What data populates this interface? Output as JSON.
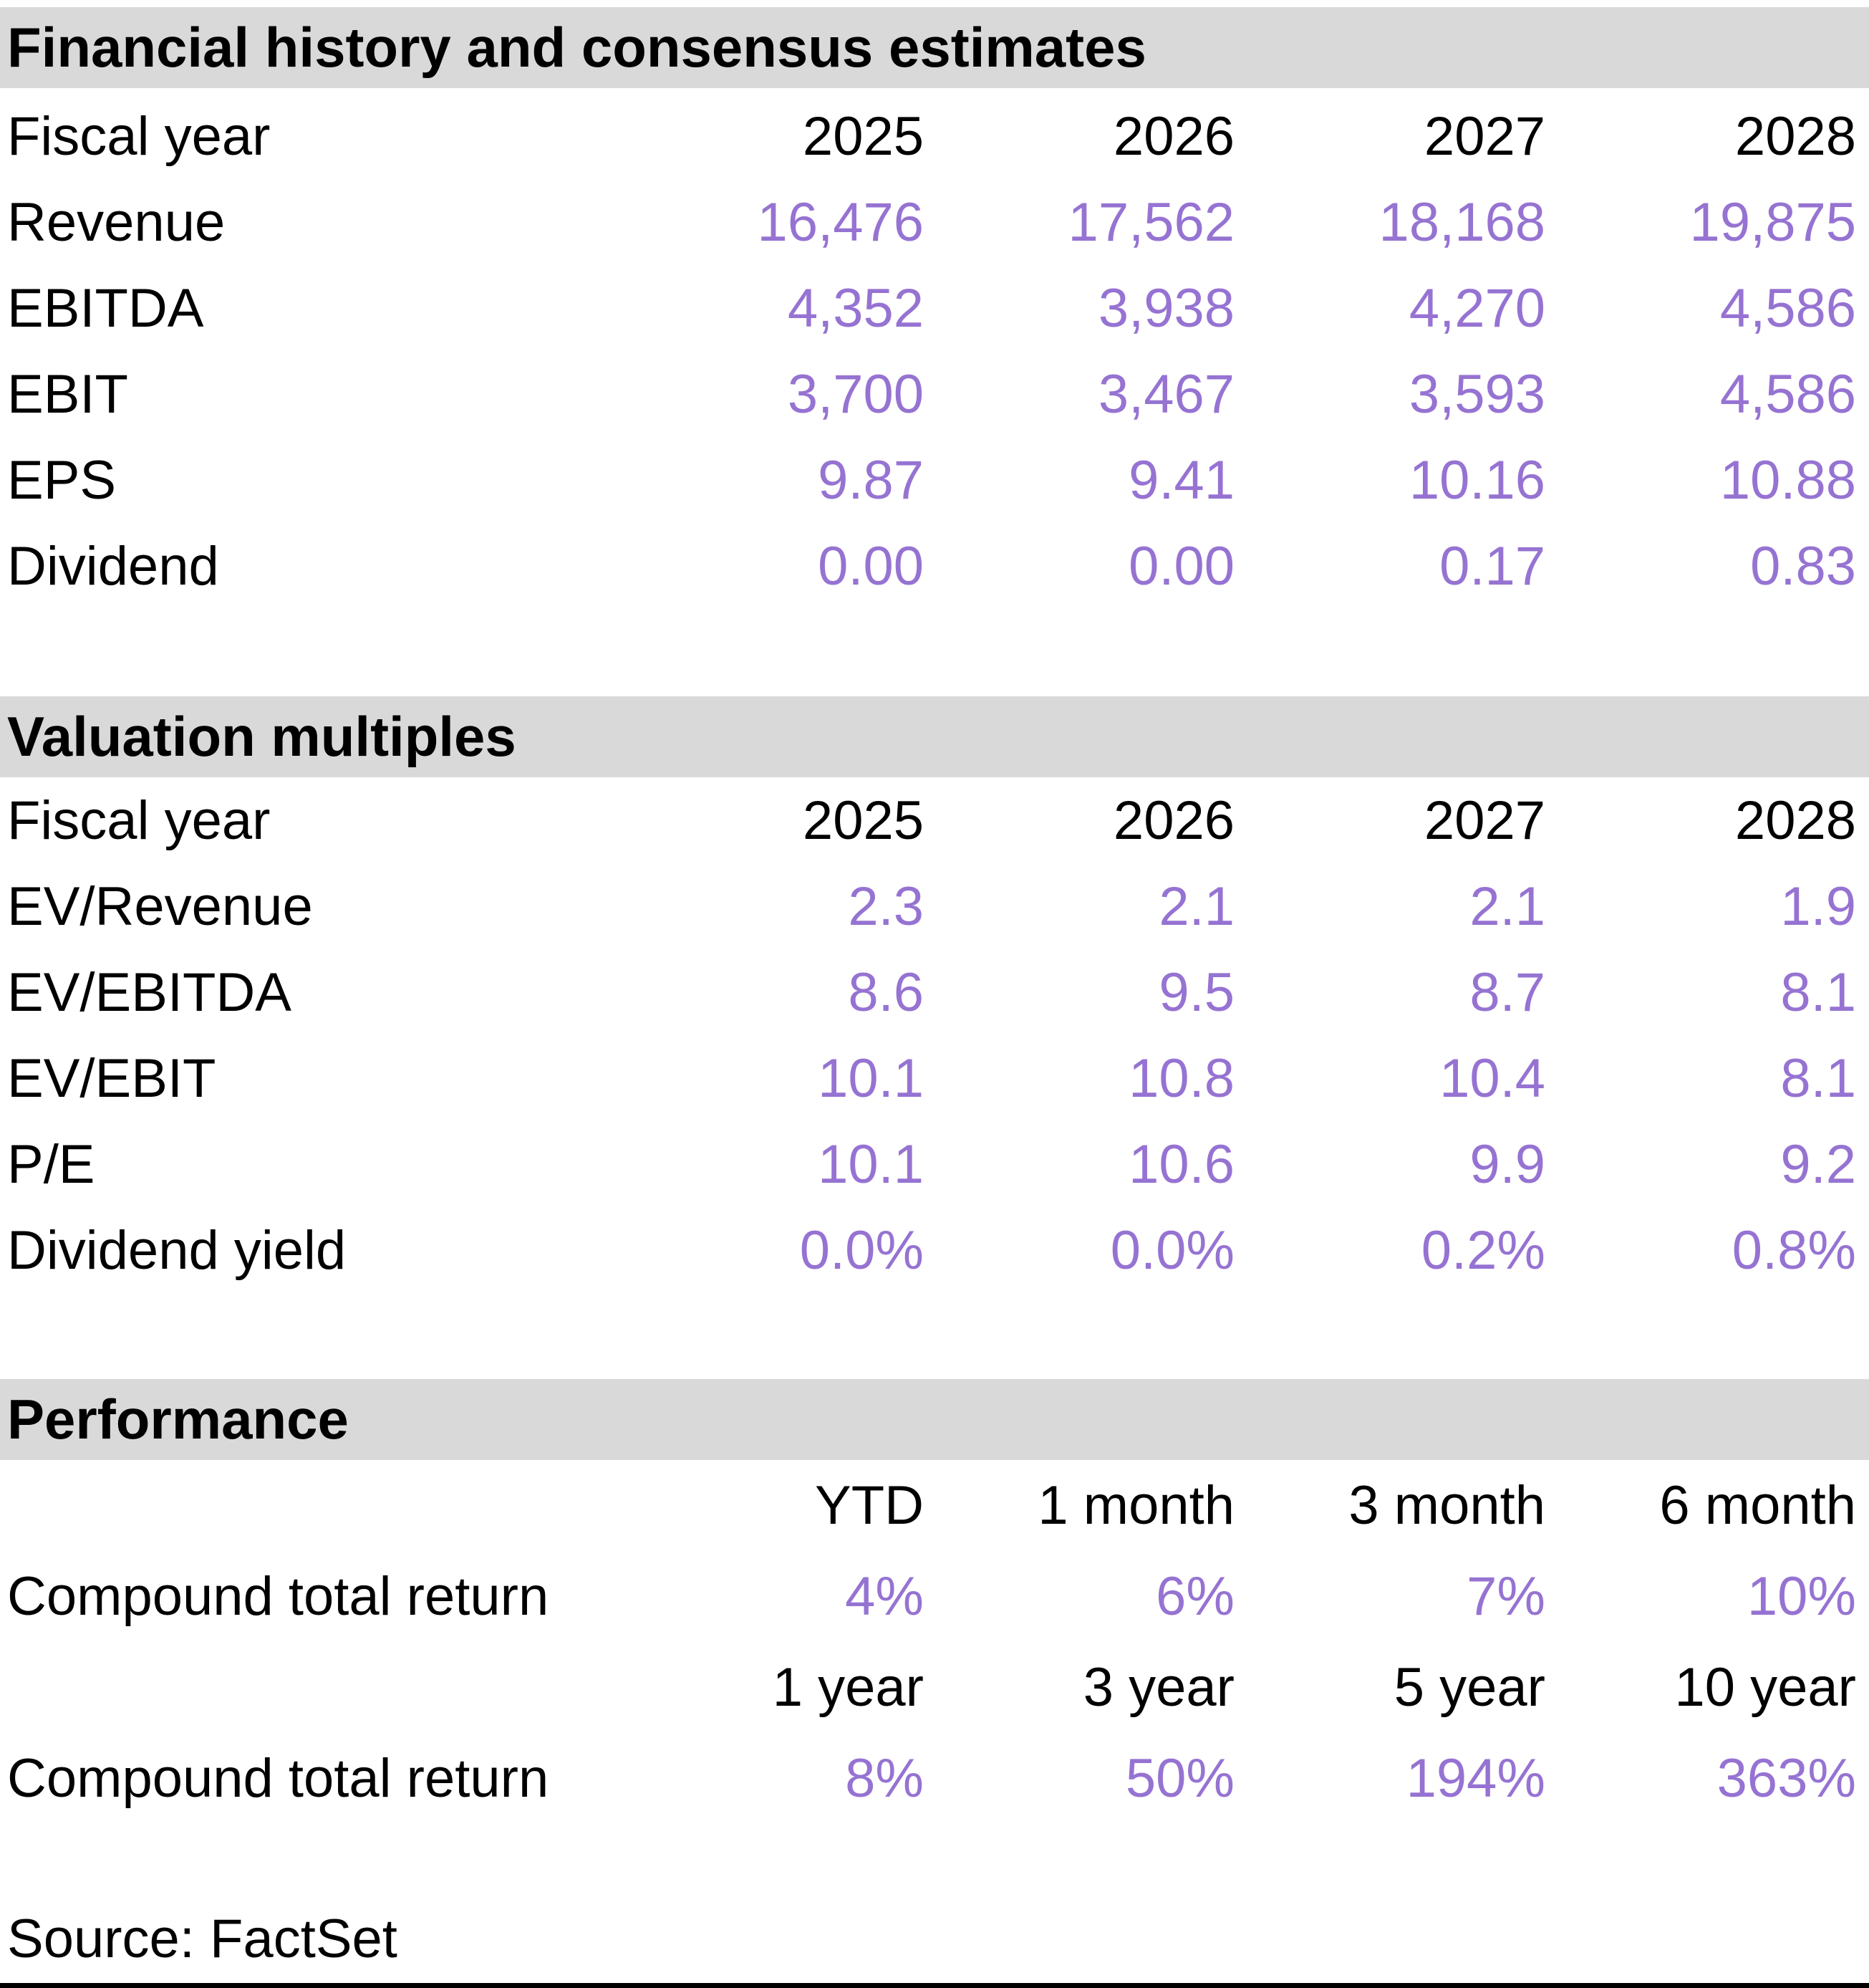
{
  "colors": {
    "accent_purple": "#9673D2",
    "section_header_bg": "#D9D9D9",
    "text": "#000000"
  },
  "sections": [
    {
      "title": "Financial history and consensus estimates",
      "header_row": {
        "label": "Fiscal year",
        "cols": [
          "2025",
          "2026",
          "2027",
          "2028"
        ]
      },
      "rows": [
        {
          "label": "Revenue",
          "values": [
            "16,476",
            "17,562",
            "18,168",
            "19,875"
          ]
        },
        {
          "label": "EBITDA",
          "values": [
            "4,352",
            "3,938",
            "4,270",
            "4,586"
          ]
        },
        {
          "label": "EBIT",
          "values": [
            "3,700",
            "3,467",
            "3,593",
            "4,586"
          ]
        },
        {
          "label": "EPS",
          "values": [
            "9.87",
            "9.41",
            "10.16",
            "10.88"
          ]
        },
        {
          "label": "Dividend",
          "values": [
            "0.00",
            "0.00",
            "0.17",
            "0.83"
          ]
        }
      ]
    },
    {
      "title": "Valuation multiples",
      "header_row": {
        "label": "Fiscal year",
        "cols": [
          "2025",
          "2026",
          "2027",
          "2028"
        ]
      },
      "rows": [
        {
          "label": "EV/Revenue",
          "values": [
            "2.3",
            "2.1",
            "2.1",
            "1.9"
          ]
        },
        {
          "label": "EV/EBITDA",
          "values": [
            "8.6",
            "9.5",
            "8.7",
            "8.1"
          ]
        },
        {
          "label": "EV/EBIT",
          "values": [
            "10.1",
            "10.8",
            "10.4",
            "8.1"
          ]
        },
        {
          "label": "P/E",
          "values": [
            "10.1",
            "10.6",
            "9.9",
            "9.2"
          ]
        },
        {
          "label": "Dividend yield",
          "values": [
            "0.0%",
            "0.0%",
            "0.2%",
            "0.8%"
          ]
        }
      ]
    },
    {
      "title": "Performance",
      "period_header_1": [
        "YTD",
        "1 month",
        "3 month",
        "6 month"
      ],
      "return_row_1": {
        "label": "Compound total return",
        "values": [
          "4%",
          "6%",
          "7%",
          "10%"
        ]
      },
      "period_header_2": [
        "1 year",
        "3 year",
        "5 year",
        "10 year"
      ],
      "return_row_2": {
        "label": "Compound total return",
        "values": [
          "8%",
          "50%",
          "194%",
          "363%"
        ]
      }
    }
  ],
  "source": "Source: FactSet"
}
